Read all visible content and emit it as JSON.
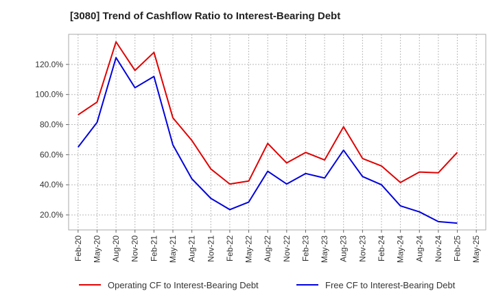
{
  "chart_data": {
    "type": "line",
    "title": "[3080]  Trend of Cashflow Ratio to Interest-Bearing Debt",
    "xlabel": "",
    "ylabel": "",
    "x": [
      "Feb-20",
      "May-20",
      "Aug-20",
      "Nov-20",
      "Feb-21",
      "May-21",
      "Aug-21",
      "Nov-21",
      "Feb-22",
      "May-22",
      "Aug-22",
      "Nov-22",
      "Feb-23",
      "May-23",
      "Aug-23",
      "Nov-23",
      "Feb-24",
      "May-24",
      "Aug-24",
      "Nov-24",
      "Feb-25",
      "May-25"
    ],
    "ylim": [
      10,
      140
    ],
    "yticks": [
      20,
      40,
      60,
      80,
      100,
      120
    ],
    "ytick_labels": [
      "20.0%",
      "40.0%",
      "60.0%",
      "80.0%",
      "100.0%",
      "120.0%"
    ],
    "grid": true,
    "legend_position": "bottom",
    "series": [
      {
        "name": "Operating CF to Interest-Bearing Debt",
        "color": "#e00000",
        "values": [
          86.5,
          95,
          135,
          116,
          128,
          84.5,
          69.5,
          50.5,
          40.5,
          42.5,
          67.5,
          54.5,
          61.5,
          56.5,
          78.5,
          57.5,
          52.5,
          41.5,
          48.5,
          48,
          61.5,
          null
        ]
      },
      {
        "name": "Free CF to Interest-Bearing Debt",
        "color": "#0000dd",
        "values": [
          65,
          81.5,
          124.5,
          104.5,
          112,
          66.5,
          44,
          31,
          23.5,
          28.5,
          49,
          40.5,
          47.5,
          44.5,
          63,
          45.5,
          40,
          26,
          22,
          15.5,
          14.5,
          null
        ]
      }
    ]
  }
}
